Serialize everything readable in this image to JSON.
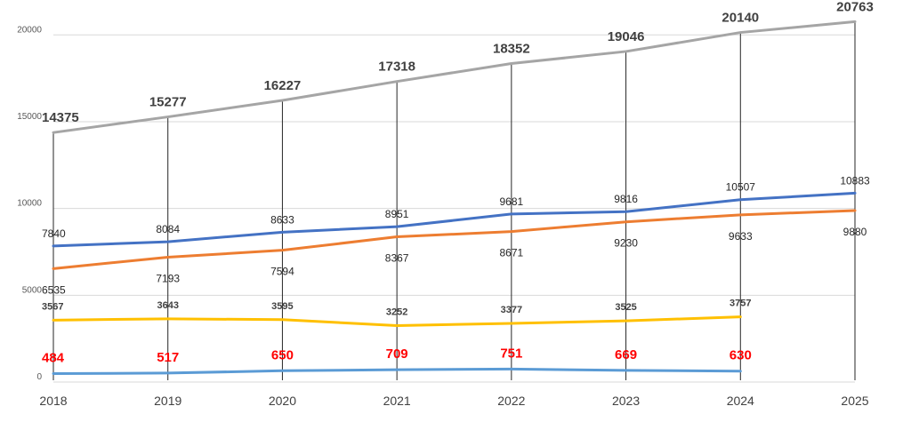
{
  "chart_data": {
    "type": "line",
    "title": "",
    "xlabel": "",
    "ylabel": "",
    "x": [
      "2018",
      "2019",
      "2020",
      "2021",
      "2022",
      "2023",
      "2024",
      "2025"
    ],
    "yticks": [
      "0",
      "5000",
      "10000",
      "15000",
      "20000"
    ],
    "ylim": [
      0,
      21500
    ],
    "grid": true,
    "legend": "none",
    "series": [
      {
        "color": "#a5a5a5",
        "label_color": "#404040",
        "label_style": "large-bold",
        "label_position": "above",
        "values": [
          14375,
          15277,
          16227,
          17318,
          18352,
          19046,
          20140,
          20763
        ]
      },
      {
        "color": "#4472c4",
        "label_color": "#262626",
        "label_style": "normal",
        "label_position": "above",
        "values": [
          7840,
          8084,
          8633,
          8951,
          9681,
          9816,
          10507,
          10883
        ]
      },
      {
        "color": "#ed7d31",
        "label_color": "#262626",
        "label_style": "normal",
        "label_position": "below",
        "values": [
          6535,
          7193,
          7594,
          8367,
          8671,
          9230,
          9633,
          9880
        ]
      },
      {
        "color": "#ffc000",
        "label_color": "#404040",
        "label_style": "small-bold",
        "label_position": "above",
        "values": [
          3567,
          3643,
          3595,
          3252,
          3377,
          3525,
          3757,
          null
        ]
      },
      {
        "color": "#5b9bd5",
        "label_color": "#ff0000",
        "label_style": "large-bold-red",
        "label_position": "above",
        "values": [
          484,
          517,
          650,
          709,
          751,
          669,
          630,
          null
        ]
      }
    ]
  }
}
